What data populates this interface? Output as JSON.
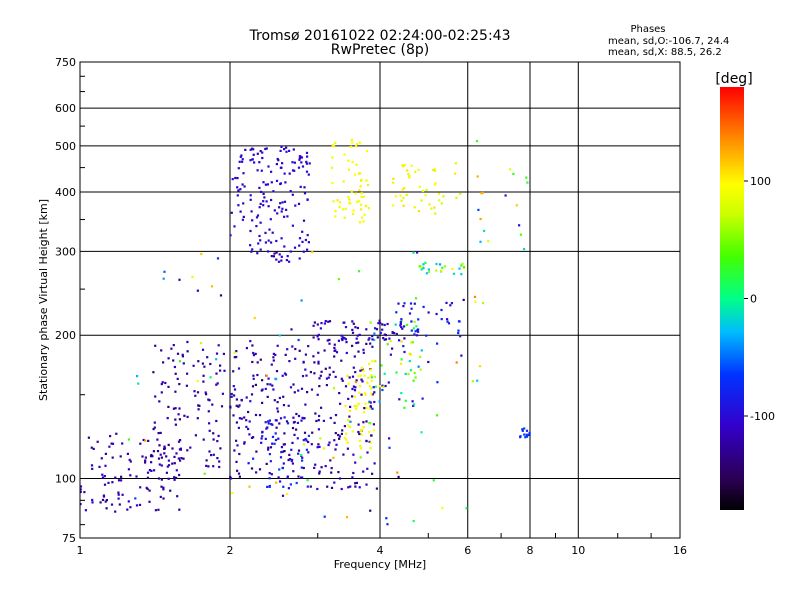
{
  "chart_data": {
    "type": "scatter",
    "title": "Tromsø 20161022 02:24:00-02:25:43",
    "subtitle": "RwPretec (8p)",
    "xlabel": "Frequency [MHz]",
    "ylabel": "Stationary phase Virtual Height [km]",
    "x_scale": "log",
    "y_scale": "log",
    "xlim": [
      1,
      16
    ],
    "ylim": [
      75,
      750
    ],
    "x_ticks": [
      1,
      2,
      4,
      6,
      8,
      10,
      16
    ],
    "y_ticks": [
      75,
      100,
      200,
      300,
      400,
      500,
      600,
      750
    ],
    "grid": true,
    "stats_header": "Phases",
    "stats": [
      "mean, sd,O:-106.7, 24.4",
      "mean, sd,X:  88.5, 26.2"
    ],
    "colorbar": {
      "label": "[deg]",
      "ticks": [
        100,
        0,
        -100
      ],
      "range": [
        -180,
        180
      ]
    },
    "clusters": [
      {
        "x": [
          1.0,
          1.6
        ],
        "y": [
          85,
          125
        ],
        "phase": [
          -140,
          -105
        ],
        "n": 120
      },
      {
        "x": [
          1.4,
          1.95
        ],
        "y": [
          105,
          195
        ],
        "phase": [
          -140,
          -110
        ],
        "n": 110
      },
      {
        "x": [
          2.0,
          2.9
        ],
        "y": [
          100,
          195
        ],
        "phase": [
          -140,
          -95
        ],
        "n": 170
      },
      {
        "x": [
          2.3,
          2.9
        ],
        "y": [
          95,
          135
        ],
        "phase": [
          -110,
          -60
        ],
        "n": 50
      },
      {
        "x": [
          2.9,
          3.9
        ],
        "y": [
          95,
          200
        ],
        "phase": [
          -140,
          -100
        ],
        "n": 150
      },
      {
        "x": [
          3.4,
          3.9
        ],
        "y": [
          115,
          175
        ],
        "phase": [
          85,
          105
        ],
        "n": 55
      },
      {
        "x": [
          3.8,
          5.0
        ],
        "y": [
          140,
          215
        ],
        "phase": [
          -130,
          110
        ],
        "n": 60
      },
      {
        "x": [
          2.9,
          4.5
        ],
        "y": [
          195,
          215
        ],
        "phase": [
          -140,
          -90
        ],
        "n": 60
      },
      {
        "x": [
          4.3,
          5.8
        ],
        "y": [
          195,
          235
        ],
        "phase": [
          -110,
          -70
        ],
        "n": 35
      },
      {
        "x": [
          2.0,
          2.9
        ],
        "y": [
          285,
          500
        ],
        "phase": [
          -115,
          -95
        ],
        "n": 170
      },
      {
        "x": [
          3.2,
          3.8
        ],
        "y": [
          340,
          520
        ],
        "phase": [
          85,
          105
        ],
        "n": 60
      },
      {
        "x": [
          4.2,
          5.9
        ],
        "y": [
          360,
          460
        ],
        "phase": [
          70,
          110
        ],
        "n": 45
      },
      {
        "x": [
          4.8,
          6.0
        ],
        "y": [
          268,
          285
        ],
        "phase": [
          -80,
          95
        ],
        "n": 25
      },
      {
        "x": [
          7.6,
          8.0
        ],
        "y": [
          122,
          128
        ],
        "phase": [
          -80,
          -60
        ],
        "n": 14
      },
      {
        "x": [
          6.1,
          8.0
        ],
        "y": [
          280,
          520
        ],
        "phase": [
          -110,
          130
        ],
        "n": 18
      },
      {
        "x": [
          1.2,
          6.5
        ],
        "y": [
          80,
          300
        ],
        "phase": [
          -160,
          150
        ],
        "n": 90
      }
    ]
  }
}
